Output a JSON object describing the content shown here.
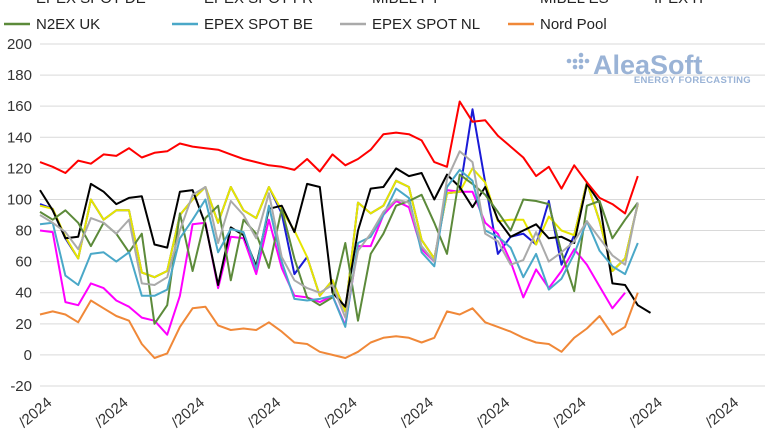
{
  "chart_data": {
    "type": "line",
    "title": "",
    "xlabel": "",
    "ylabel": "",
    "ylim": [
      -20,
      200
    ],
    "yticks": [
      -20,
      0,
      20,
      40,
      60,
      80,
      100,
      120,
      140,
      160,
      180,
      200
    ],
    "ytick_labels": [
      "-20",
      "0",
      "20",
      "40",
      "60",
      "80",
      "100",
      "120",
      "140",
      "160",
      "180",
      "200"
    ],
    "x_count": 58,
    "xtick_positions": [
      1,
      7,
      13,
      19,
      25,
      31,
      37,
      43,
      49,
      55
    ],
    "xtick_labels": [
      "/2024",
      "/2024",
      "/2024",
      "/2024",
      "/2024",
      "/2024",
      "/2024",
      "/2024",
      "/2024",
      "/2024"
    ],
    "legend_position": "top",
    "series": [
      {
        "name": "EPEX SPOT DE",
        "color": "#1a1ad6",
        "values": [
          97,
          94,
          75,
          62,
          100,
          87,
          93,
          93,
          53,
          50,
          54,
          90,
          100,
          108,
          85,
          108,
          93,
          88,
          108,
          91,
          52,
          63,
          38,
          48,
          28,
          98,
          91,
          96,
          112,
          108,
          74,
          62,
          104,
          105,
          158,
          111,
          65,
          76,
          78,
          71,
          99,
          58,
          77,
          111,
          86,
          54,
          62,
          97
        ]
      },
      {
        "name": "EPEX SPOT FR",
        "color": "#ff00ff",
        "values": [
          80,
          79,
          34,
          32,
          46,
          43,
          35,
          31,
          24,
          22,
          13,
          38,
          84,
          85,
          43,
          76,
          75,
          52,
          87,
          56,
          38,
          37,
          34,
          38,
          19,
          70,
          70,
          90,
          99,
          95,
          68,
          60,
          106,
          105,
          105,
          85,
          78,
          60,
          37,
          55,
          43,
          54,
          68,
          58,
          44,
          30,
          40
        ]
      },
      {
        "name": "MIBEL PT",
        "color": "#e6e600",
        "values": [
          96,
          94,
          76,
          62,
          100,
          87,
          93,
          93,
          53,
          50,
          54,
          90,
          100,
          108,
          85,
          108,
          93,
          88,
          108,
          93,
          80,
          63,
          38,
          48,
          28,
          98,
          91,
          96,
          112,
          108,
          74,
          62,
          104,
          105,
          120,
          111,
          86,
          87,
          87,
          71,
          89,
          80,
          77,
          111,
          86,
          54,
          62,
          97
        ]
      },
      {
        "name": "MIBEL ES",
        "color": "#000000",
        "values": [
          106,
          93,
          75,
          76,
          110,
          105,
          97,
          101,
          102,
          71,
          69,
          105,
          106,
          84,
          45,
          82,
          77,
          57,
          94,
          96,
          79,
          110,
          108,
          40,
          31,
          80,
          107,
          108,
          120,
          115,
          117,
          100,
          116,
          108,
          95,
          108,
          87,
          76,
          80,
          84,
          75,
          76,
          72,
          110,
          98,
          46,
          45,
          32,
          27
        ]
      },
      {
        "name": "IPEX IT",
        "color": "#ff0000",
        "values": [
          124,
          121,
          117,
          125,
          123,
          129,
          128,
          133,
          127,
          130,
          131,
          136,
          134,
          133,
          132,
          129,
          126,
          124,
          122,
          121,
          119,
          126,
          118,
          129,
          122,
          126,
          132,
          142,
          143,
          142,
          138,
          124,
          121,
          163,
          150,
          151,
          141,
          134,
          127,
          115,
          121,
          107,
          122,
          111,
          101,
          97,
          91,
          115
        ]
      },
      {
        "name": "N2EX UK",
        "color": "#5c8a3a",
        "values": [
          92,
          87,
          93,
          85,
          70,
          85,
          78,
          66,
          78,
          20,
          32,
          91,
          54,
          88,
          96,
          48,
          87,
          78,
          56,
          94,
          62,
          37,
          32,
          37,
          72,
          22,
          65,
          78,
          96,
          99,
          103,
          85,
          65,
          116,
          110,
          103,
          92,
          80,
          100,
          99,
          97,
          66,
          41,
          96,
          99,
          75,
          87,
          98
        ]
      },
      {
        "name": "EPEX SPOT BE",
        "color": "#4aa8c8",
        "values": [
          84,
          85,
          51,
          45,
          65,
          66,
          60,
          66,
          38,
          38,
          42,
          75,
          87,
          100,
          66,
          81,
          79,
          55,
          96,
          60,
          36,
          35,
          36,
          38,
          18,
          72,
          76,
          90,
          107,
          101,
          66,
          57,
          108,
          119,
          112,
          80,
          76,
          69,
          50,
          65,
          42,
          49,
          65,
          86,
          67,
          57,
          52,
          72
        ]
      },
      {
        "name": "EPEX SPOT NL",
        "color": "#aaaaaa",
        "values": [
          90,
          85,
          79,
          68,
          88,
          85,
          78,
          87,
          46,
          45,
          50,
          80,
          103,
          108,
          72,
          99,
          90,
          75,
          104,
          63,
          48,
          43,
          40,
          45,
          24,
          67,
          78,
          92,
          100,
          98,
          70,
          60,
          113,
          131,
          124,
          78,
          73,
          58,
          61,
          79,
          60,
          66,
          73,
          86,
          75,
          64,
          58,
          98
        ]
      },
      {
        "name": "Nord Pool",
        "color": "#f08838",
        "values": [
          26,
          28,
          26,
          21,
          35,
          30,
          25,
          22,
          7,
          -2,
          1,
          18,
          30,
          31,
          19,
          16,
          17,
          16,
          21,
          15,
          8,
          7,
          2,
          0,
          -2,
          2,
          8,
          11,
          12,
          11,
          8,
          11,
          28,
          26,
          30,
          21,
          18,
          15,
          11,
          8,
          7,
          2,
          11,
          17,
          25,
          13,
          18,
          40
        ]
      }
    ]
  },
  "logo": {
    "name": "AleaSoft",
    "tagline": "ENERGY FORECASTING"
  }
}
